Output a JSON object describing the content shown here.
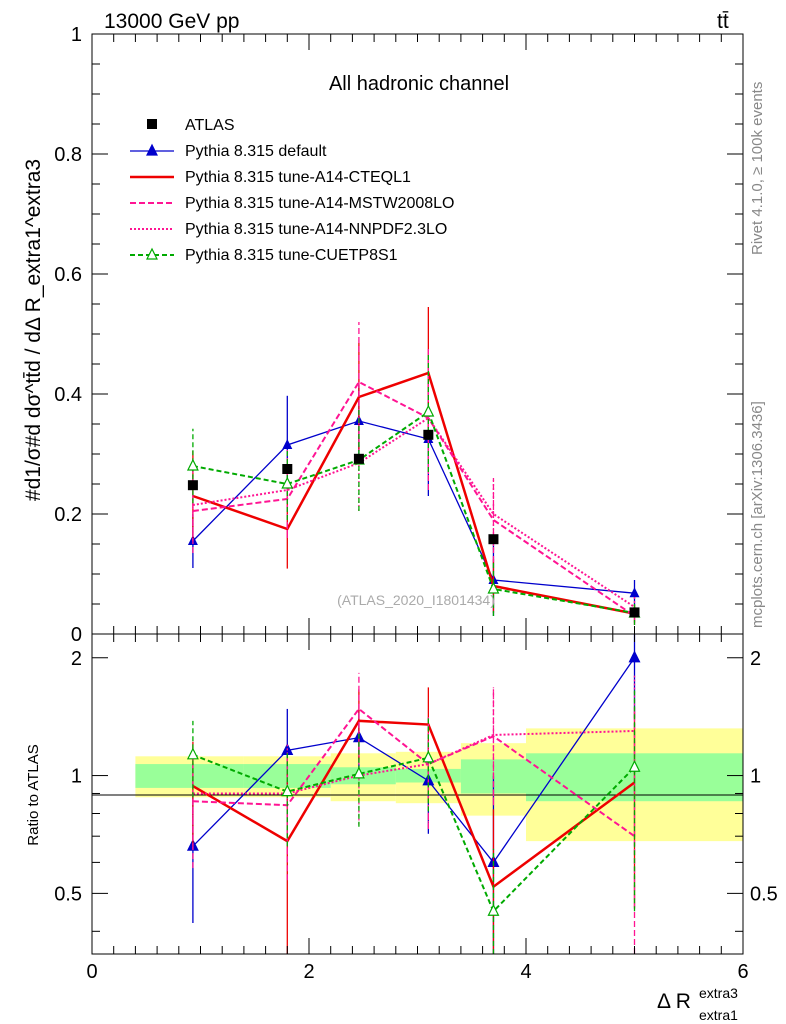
{
  "header": {
    "energy_label": "13000 GeV pp",
    "process_label": "tt̄",
    "side_note_top": "Rivet 4.1.0, ≥ 100k events",
    "side_note_bottom": "mcplots.cern.ch [arXiv:1306.3436]"
  },
  "chart_data": {
    "type": "line",
    "title": "All hadronic channel",
    "analysis_label": "(ATLAS_2020_I1801434)",
    "ylabel_main": "#d1/σ#d dσ^tt̄d / dΔ R_extra1^extra3",
    "ylabel_ratio": "Ratio to ATLAS",
    "xlabel": "Δ R",
    "xlabel_sup": "extra3",
    "xlabel_sub": "extra1",
    "xlim": [
      0,
      6
    ],
    "ylim_main": [
      0,
      1.0
    ],
    "ylim_ratio": [
      0.35,
      2.3
    ],
    "x_ticks": [
      0,
      2,
      4,
      6
    ],
    "x_tick_labels": [
      "0",
      "2",
      "4",
      "6"
    ],
    "y_ticks_main": [
      0,
      0.2,
      0.4,
      0.6,
      0.8,
      1.0
    ],
    "y_tick_labels_main": [
      "0",
      "0.2",
      "0.4",
      "0.6",
      "0.8",
      "1"
    ],
    "y_ticks_ratio": [
      0.5,
      1,
      2
    ],
    "y_tick_labels_ratio": [
      "0.5",
      "1",
      "2"
    ],
    "bins": [
      {
        "lo": 0.4,
        "hi": 1.4
      },
      {
        "lo": 1.4,
        "hi": 2.2
      },
      {
        "lo": 2.2,
        "hi": 2.8
      },
      {
        "lo": 2.8,
        "hi": 3.4
      },
      {
        "lo": 3.4,
        "hi": 4.0
      },
      {
        "lo": 4.0,
        "hi": 6.0
      }
    ],
    "x": [
      0.93,
      1.8,
      2.46,
      3.1,
      3.7,
      5.0
    ],
    "data": {
      "name": "ATLAS",
      "values": [
        0.248,
        0.275,
        0.292,
        0.332,
        0.158,
        0.036
      ],
      "band_stat": [
        0.07,
        0.07,
        0.05,
        0.04,
        0.1,
        0.14
      ],
      "band_total": [
        0.12,
        0.12,
        0.14,
        0.15,
        0.21,
        0.32
      ],
      "band_stat_ratio_lo": [
        0.93,
        0.93,
        0.95,
        0.96,
        0.9,
        0.86
      ],
      "band_stat_ratio_hi": [
        1.07,
        1.07,
        1.05,
        1.04,
        1.1,
        1.14
      ],
      "band_total_ratio_lo": [
        0.88,
        0.88,
        0.86,
        0.85,
        0.79,
        0.68
      ],
      "band_total_ratio_hi": [
        1.12,
        1.12,
        1.14,
        1.15,
        1.21,
        1.32
      ]
    },
    "series": [
      {
        "name": "Pythia 8.315 default",
        "color": "#0000cc",
        "dash": "",
        "marker": "triangle",
        "values": [
          0.155,
          0.315,
          0.355,
          0.325,
          0.09,
          0.068
        ],
        "err": [
          0.045,
          0.082,
          0.06,
          0.095,
          0.06,
          0.022
        ],
        "ratio": [
          0.66,
          1.16,
          1.25,
          0.97,
          0.6,
          2.0
        ],
        "ratio_err": [
          0.24,
          0.32,
          0.22,
          0.26,
          0.4,
          0.6
        ]
      },
      {
        "name": "Pythia 8.315 tune-A14-CTEQL1",
        "color": "#ee0000",
        "dash": "",
        "marker": "none",
        "values": [
          0.23,
          0.175,
          0.395,
          0.435,
          0.08,
          0.034
        ],
        "err": [
          0.075,
          0.066,
          0.09,
          0.11,
          0.045,
          0.015
        ],
        "ratio": [
          0.94,
          0.68,
          1.38,
          1.35,
          0.52,
          0.96
        ],
        "ratio_err": [
          0.28,
          0.35,
          0.28,
          0.33,
          0.3,
          0.5
        ]
      },
      {
        "name": "Pythia 8.315 tune-A14-MSTW2008LO",
        "color": "#ff1493",
        "dash": "6,3",
        "marker": "none",
        "values": [
          0.205,
          0.225,
          0.42,
          0.36,
          0.19,
          0.03
        ],
        "err": [
          0.07,
          0.065,
          0.1,
          0.12,
          0.07,
          0.015
        ],
        "ratio": [
          0.86,
          0.84,
          1.48,
          1.07,
          1.26,
          0.7
        ],
        "ratio_err": [
          0.28,
          0.3,
          0.35,
          0.34,
          0.42,
          0.8
        ]
      },
      {
        "name": "Pythia 8.315 tune-A14-NNPDF2.3LO",
        "color": "#ff1493",
        "dash": "2,2",
        "marker": "none",
        "values": [
          0.215,
          0.24,
          0.285,
          0.36,
          0.2,
          0.045
        ],
        "err": [
          0.06,
          0.07,
          0.08,
          0.1,
          0.06,
          0.02
        ],
        "ratio": [
          0.9,
          0.9,
          1.0,
          1.07,
          1.27,
          1.3
        ],
        "ratio_err": [
          0.25,
          0.3,
          0.25,
          0.33,
          0.4,
          0.5
        ]
      },
      {
        "name": "Pythia 8.315 tune-CUETP8S1",
        "color": "#00aa00",
        "dash": "5,3",
        "marker": "open-triangle",
        "values": [
          0.28,
          0.25,
          0.29,
          0.37,
          0.075,
          0.035
        ],
        "err": [
          0.062,
          0.06,
          0.085,
          0.1,
          0.045,
          0.02
        ],
        "ratio": [
          1.13,
          0.91,
          1.01,
          1.11,
          0.45,
          1.05
        ],
        "ratio_err": [
          0.25,
          0.25,
          0.27,
          0.3,
          0.2,
          0.6
        ]
      }
    ],
    "legend_position": "top-left"
  }
}
